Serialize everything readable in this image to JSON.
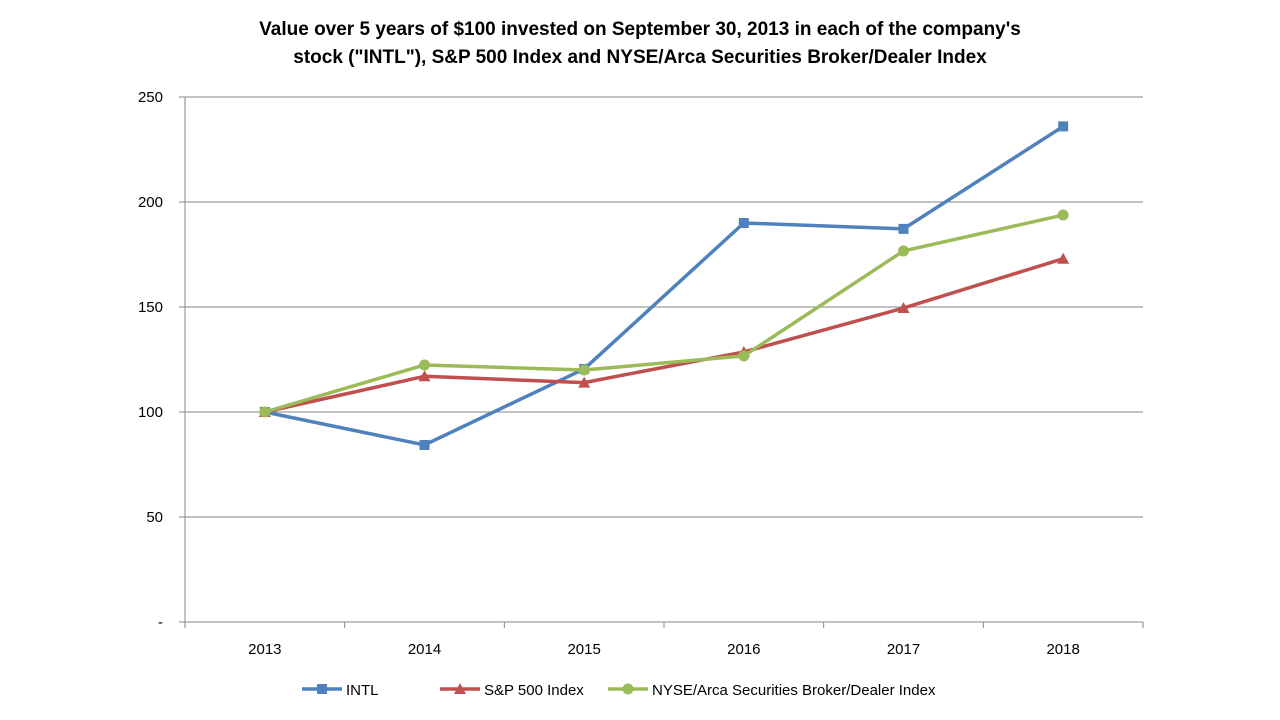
{
  "chart_data": {
    "type": "line",
    "title": [
      "Value over 5 years of $100 invested on September 30, 2013 in each of the company's",
      "stock (\"INTL\"), S&P 500 Index and NYSE/Arca Securities Broker/Dealer Index"
    ],
    "xlabel": "",
    "ylabel": "",
    "categories": [
      "2013",
      "2014",
      "2015",
      "2016",
      "2017",
      "2018"
    ],
    "ylim": [
      0,
      250
    ],
    "yticks": [
      0,
      50,
      100,
      150,
      200,
      250
    ],
    "ytick_labels": [
      "-",
      "50",
      "100",
      "150",
      "200",
      "250"
    ],
    "grid": "horizontal",
    "legend_position": "bottom",
    "series": [
      {
        "name": "INTL",
        "color": "#4F81BD",
        "marker": "square",
        "values": [
          100,
          84.3,
          120.5,
          190,
          187.2,
          236
        ]
      },
      {
        "name": "S&P 500 Index",
        "color": "#C0504D",
        "marker": "triangle",
        "values": [
          100,
          117,
          114,
          128.6,
          149.5,
          173
        ]
      },
      {
        "name": "NYSE/Arca Securities Broker/Dealer Index",
        "color": "#9BBB59",
        "marker": "circle",
        "values": [
          100,
          122.4,
          120,
          126.7,
          176.7,
          193.8
        ]
      }
    ]
  }
}
